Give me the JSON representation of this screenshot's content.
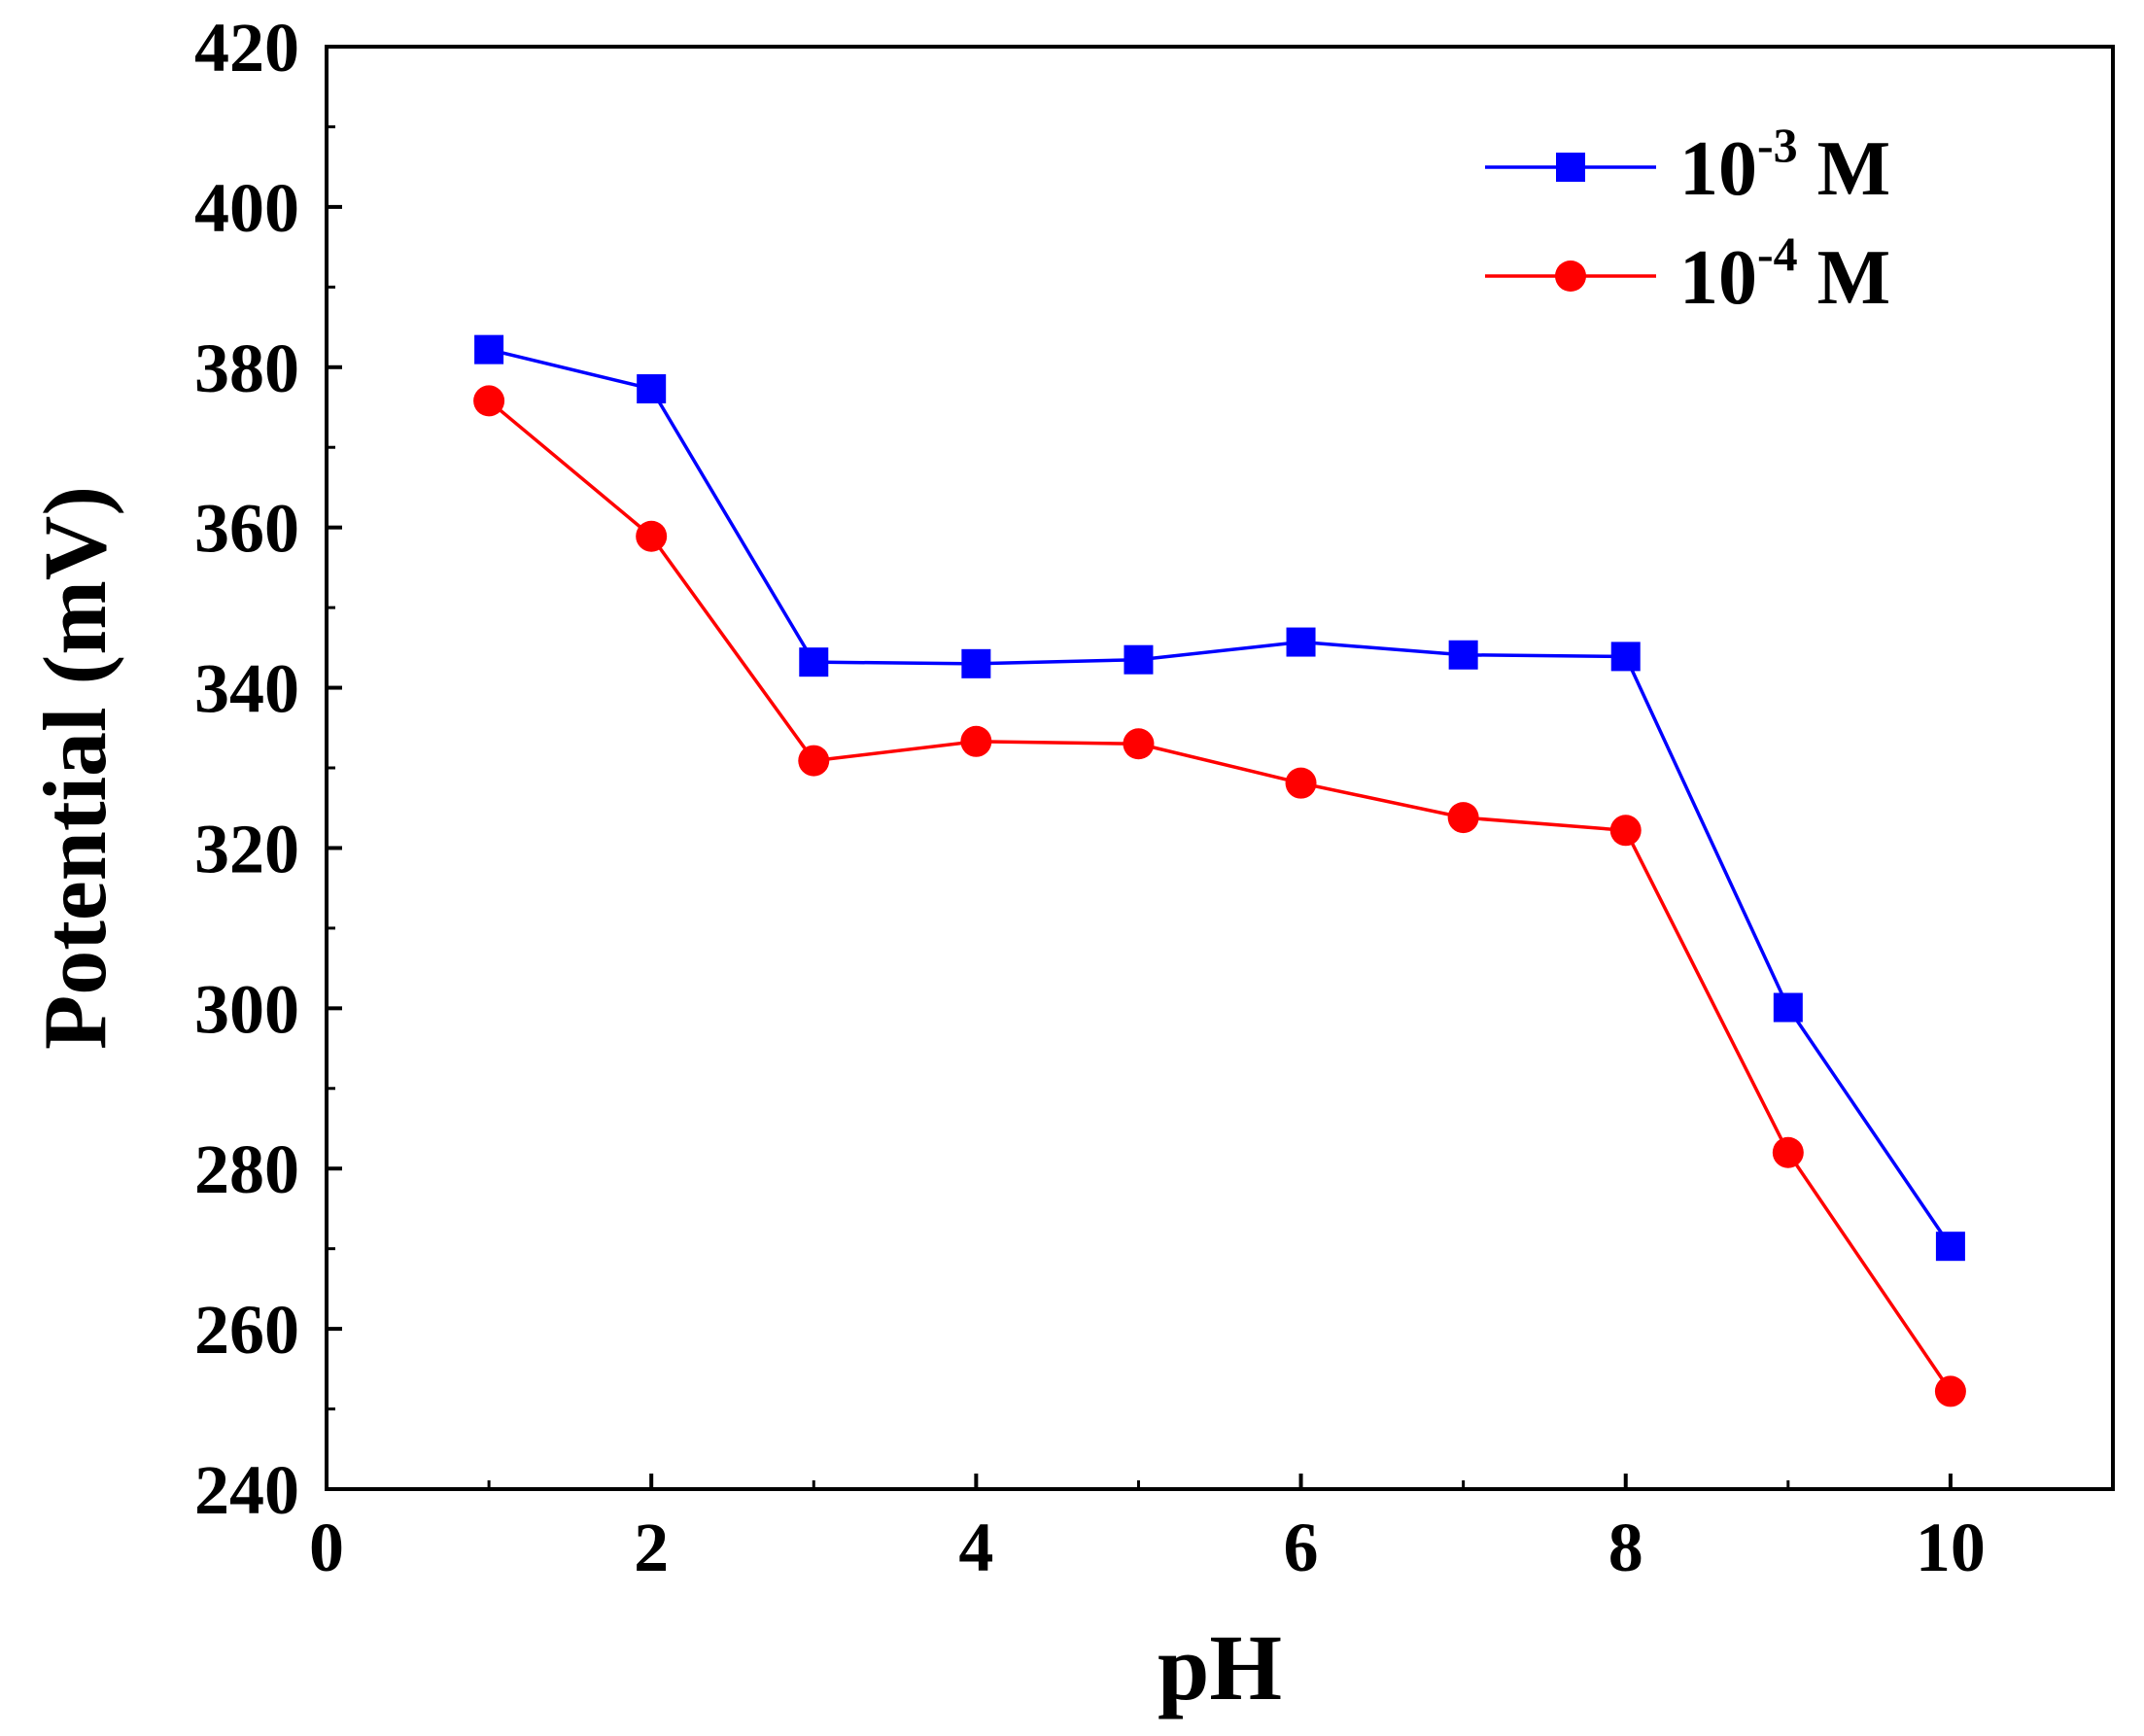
{
  "chart_data": {
    "type": "line",
    "title": "",
    "xlabel": "pH",
    "ylabel": "Potential (mV)",
    "xlim": [
      0,
      11
    ],
    "ylim": [
      240,
      420
    ],
    "x_ticks": [
      0,
      2,
      4,
      6,
      8,
      10
    ],
    "x_tick_labels": [
      "0",
      "2",
      "4",
      "6",
      "8",
      "10"
    ],
    "y_ticks": [
      240,
      260,
      280,
      300,
      320,
      340,
      360,
      380,
      400,
      420
    ],
    "y_tick_labels": [
      "240",
      "260",
      "280",
      "300",
      "320",
      "340",
      "360",
      "380",
      "400",
      "420"
    ],
    "grid": false,
    "legend_position": "top-right",
    "series": [
      {
        "name": "10-3 M",
        "legend_base": "10",
        "legend_exp": "-3",
        "legend_unit": " M",
        "color": "#0000ff",
        "marker": "square",
        "x": [
          1,
          2,
          3,
          4,
          5,
          6,
          7,
          8,
          9,
          10
        ],
        "y": [
          382.2,
          377.3,
          343.2,
          343.0,
          343.5,
          345.7,
          344.1,
          343.9,
          300.1,
          270.3
        ]
      },
      {
        "name": "10-4 M",
        "legend_base": "10",
        "legend_exp": "-4",
        "legend_unit": " M",
        "color": "#ff0000",
        "marker": "circle",
        "x": [
          1,
          2,
          3,
          4,
          5,
          6,
          7,
          8,
          9,
          10
        ],
        "y": [
          375.8,
          358.9,
          330.9,
          333.3,
          333.0,
          328.1,
          323.8,
          322.2,
          282.0,
          252.2
        ]
      }
    ]
  }
}
